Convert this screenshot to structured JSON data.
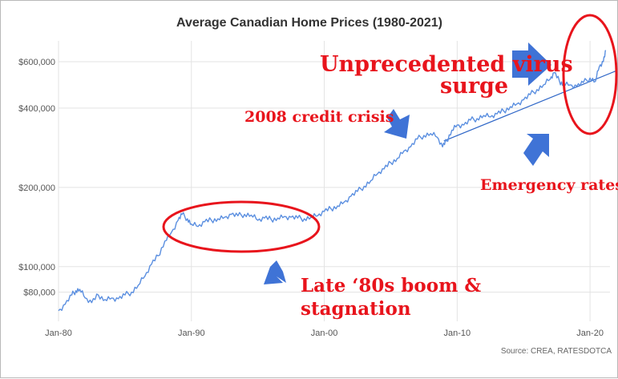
{
  "chart_data": {
    "type": "line",
    "title": "Average Canadian Home Prices (1980-2021)",
    "xlabel": "",
    "ylabel": "",
    "y_scale": "log",
    "ylim": [
      62000,
      720000
    ],
    "xlim": [
      1980,
      2021.5
    ],
    "y_ticks": [
      {
        "value": 80000,
        "label": "$80,000"
      },
      {
        "value": 100000,
        "label": "$100,000"
      },
      {
        "value": 200000,
        "label": "$200,000"
      },
      {
        "value": 400000,
        "label": "$400,000"
      },
      {
        "value": 600000,
        "label": "$600,000"
      }
    ],
    "x_ticks": [
      {
        "value": 1980,
        "label": "Jan-80"
      },
      {
        "value": 1990,
        "label": "Jan-90"
      },
      {
        "value": 2000,
        "label": "Jan-00"
      },
      {
        "value": 2010,
        "label": "Jan-10"
      },
      {
        "value": 2020,
        "label": "Jan-20"
      }
    ],
    "grid": true,
    "series": [
      {
        "color": "#5b8fe0",
        "points": [
          [
            1980.0,
            68000
          ],
          [
            1980.5,
            72000
          ],
          [
            1981.0,
            78000
          ],
          [
            1981.3,
            81000
          ],
          [
            1981.6,
            82000
          ],
          [
            1982.0,
            76000
          ],
          [
            1982.5,
            73000
          ],
          [
            1983.0,
            78000
          ],
          [
            1983.5,
            75000
          ],
          [
            1984.0,
            76000
          ],
          [
            1984.5,
            75500
          ],
          [
            1985.0,
            78000
          ],
          [
            1985.5,
            80000
          ],
          [
            1986.0,
            85000
          ],
          [
            1986.5,
            92000
          ],
          [
            1987.0,
            102000
          ],
          [
            1987.5,
            110000
          ],
          [
            1988.0,
            125000
          ],
          [
            1988.5,
            135000
          ],
          [
            1989.0,
            150000
          ],
          [
            1989.3,
            158000
          ],
          [
            1989.7,
            152000
          ],
          [
            1990.0,
            145000
          ],
          [
            1990.5,
            142000
          ],
          [
            1991.0,
            148000
          ],
          [
            1991.5,
            150000
          ],
          [
            1992.0,
            152000
          ],
          [
            1992.5,
            154000
          ],
          [
            1993.0,
            158000
          ],
          [
            1993.5,
            156000
          ],
          [
            1994.0,
            158000
          ],
          [
            1994.5,
            157000
          ],
          [
            1995.0,
            150000
          ],
          [
            1995.5,
            153000
          ],
          [
            1996.0,
            151000
          ],
          [
            1996.5,
            153000
          ],
          [
            1997.0,
            155000
          ],
          [
            1997.5,
            154000
          ],
          [
            1998.0,
            153000
          ],
          [
            1998.5,
            152000
          ],
          [
            1999.0,
            154000
          ],
          [
            1999.5,
            156000
          ],
          [
            2000.0,
            162000
          ],
          [
            2000.5,
            166000
          ],
          [
            2001.0,
            170000
          ],
          [
            2001.5,
            176000
          ],
          [
            2002.0,
            185000
          ],
          [
            2002.5,
            193000
          ],
          [
            2003.0,
            202000
          ],
          [
            2003.5,
            212000
          ],
          [
            2004.0,
            225000
          ],
          [
            2004.5,
            235000
          ],
          [
            2005.0,
            248000
          ],
          [
            2005.5,
            258000
          ],
          [
            2006.0,
            275000
          ],
          [
            2006.5,
            285000
          ],
          [
            2007.0,
            305000
          ],
          [
            2007.5,
            315000
          ],
          [
            2008.0,
            320000
          ],
          [
            2008.5,
            310000
          ],
          [
            2008.9,
            285000
          ],
          [
            2009.2,
            300000
          ],
          [
            2009.6,
            330000
          ],
          [
            2010.0,
            345000
          ],
          [
            2010.5,
            345000
          ],
          [
            2011.0,
            360000
          ],
          [
            2011.5,
            365000
          ],
          [
            2012.0,
            375000
          ],
          [
            2012.5,
            370000
          ],
          [
            2013.0,
            380000
          ],
          [
            2013.5,
            390000
          ],
          [
            2014.0,
            405000
          ],
          [
            2014.5,
            415000
          ],
          [
            2015.0,
            430000
          ],
          [
            2015.5,
            450000
          ],
          [
            2016.0,
            470000
          ],
          [
            2016.5,
            490000
          ],
          [
            2017.0,
            515000
          ],
          [
            2017.3,
            545000
          ],
          [
            2017.7,
            505000
          ],
          [
            2018.0,
            495000
          ],
          [
            2018.5,
            490000
          ],
          [
            2019.0,
            485000
          ],
          [
            2019.5,
            500000
          ],
          [
            2020.0,
            520000
          ],
          [
            2020.4,
            505000
          ],
          [
            2020.7,
            575000
          ],
          [
            2021.0,
            600000
          ],
          [
            2021.2,
            660000
          ]
        ]
      }
    ],
    "trendline": {
      "color": "#2e66c7",
      "points": [
        [
          2009.0,
          300000
        ],
        [
          2022.0,
          555000
        ]
      ]
    },
    "annotations": [
      {
        "text": "Unprecedented  virus",
        "color": "#e8141c"
      },
      {
        "text": "surge",
        "color": "#e8141c"
      },
      {
        "text": "2008 credit crisis",
        "color": "#e8141c"
      },
      {
        "text": "Emergency rates",
        "color": "#e8141c"
      },
      {
        "text": "Late ‘80s boom &",
        "color": "#e8141c"
      },
      {
        "text": "stagnation",
        "color": "#e8141c"
      }
    ],
    "highlight_color": "#e8141c",
    "arrow_color": "#3f73d6",
    "source": "Source: CREA, RATESDOTCA"
  }
}
